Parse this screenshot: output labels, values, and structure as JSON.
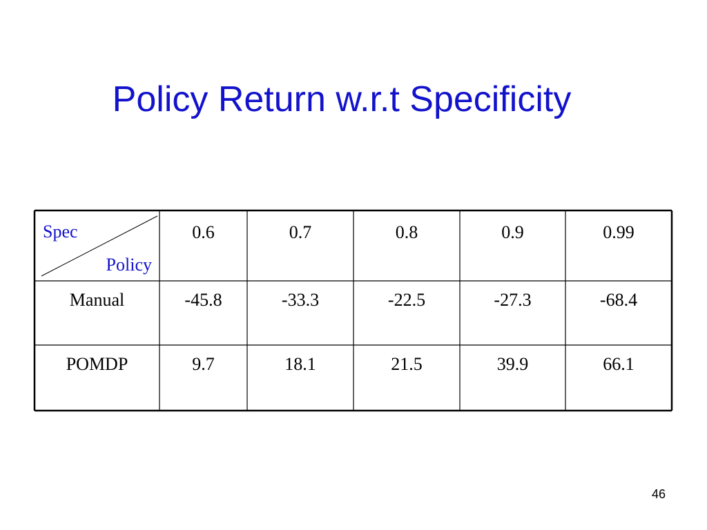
{
  "title": "Policy Return w.r.t Specificity",
  "table": {
    "corner": {
      "top": "Spec",
      "bottom": "Policy"
    },
    "columns": [
      "0.6",
      "0.7",
      "0.8",
      "0.9",
      "0.99"
    ],
    "rows": [
      [
        "Manual",
        "-45.8",
        "-33.3",
        "-22.5",
        "-27.3",
        "-68.4"
      ],
      [
        "POMDP",
        "9.7",
        "18.1",
        "21.5",
        "39.9",
        "66.1"
      ]
    ]
  },
  "page_number": "46"
}
